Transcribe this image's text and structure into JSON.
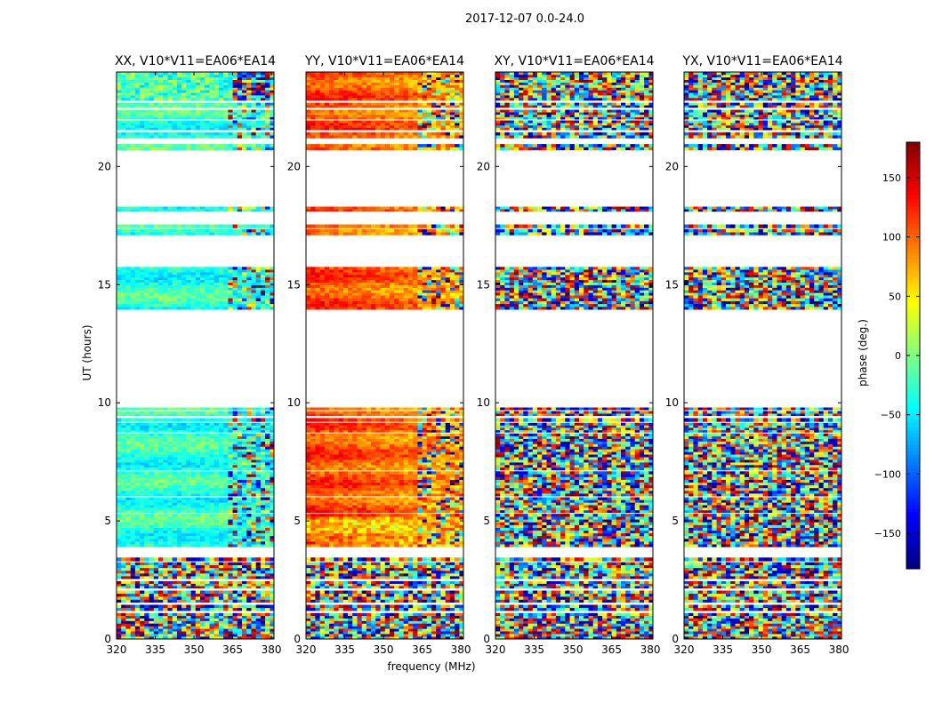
{
  "suptitle": "2017-12-07 0.0-24.0",
  "chart_data": {
    "type": "heatmap",
    "panels": [
      {
        "title": "XX, V10*V11=EA06*EA14",
        "pol": "XX"
      },
      {
        "title": "YY, V10*V11=EA06*EA14",
        "pol": "YY"
      },
      {
        "title": "XY, V10*V11=EA06*EA14",
        "pol": "XY"
      },
      {
        "title": "YX, V10*V11=EA06*EA14",
        "pol": "YX"
      }
    ],
    "xlabel": "frequency (MHz)",
    "ylabel": "UT (hours)",
    "xlim": [
      320,
      381
    ],
    "ylim": [
      0,
      24
    ],
    "xticks": [
      320,
      335,
      350,
      365,
      380
    ],
    "yticks": [
      0,
      5,
      10,
      15,
      20
    ],
    "colorbar": {
      "label": "phase (deg.)",
      "range": [
        -180,
        180
      ],
      "ticks": [
        150,
        100,
        50,
        0,
        -50,
        -100,
        -150
      ],
      "tick_labels": [
        "150",
        "100",
        "50",
        "0",
        "−50",
        "−100",
        "−150"
      ],
      "colormap": "jet"
    },
    "data_blocks_ut": [
      [
        0.0,
        1.1
      ],
      [
        1.2,
        1.45
      ],
      [
        1.55,
        2.05
      ],
      [
        2.15,
        2.45
      ],
      [
        2.55,
        3.25
      ],
      [
        3.3,
        3.45
      ],
      [
        3.9,
        4.6
      ],
      [
        4.6,
        5.3
      ],
      [
        5.35,
        6.0
      ],
      [
        6.05,
        7.1
      ],
      [
        7.15,
        8.7
      ],
      [
        8.75,
        9.15
      ],
      [
        9.2,
        9.35
      ],
      [
        9.45,
        9.65
      ],
      [
        9.7,
        9.8
      ],
      [
        13.95,
        14.55
      ],
      [
        14.55,
        15.75
      ],
      [
        17.1,
        17.35
      ],
      [
        17.4,
        17.55
      ],
      [
        18.1,
        18.3
      ],
      [
        20.7,
        20.95
      ],
      [
        21.2,
        21.45
      ],
      [
        21.55,
        21.95
      ],
      [
        22.0,
        22.4
      ],
      [
        22.5,
        22.7
      ],
      [
        22.8,
        24.0
      ]
    ],
    "grid": false
  }
}
